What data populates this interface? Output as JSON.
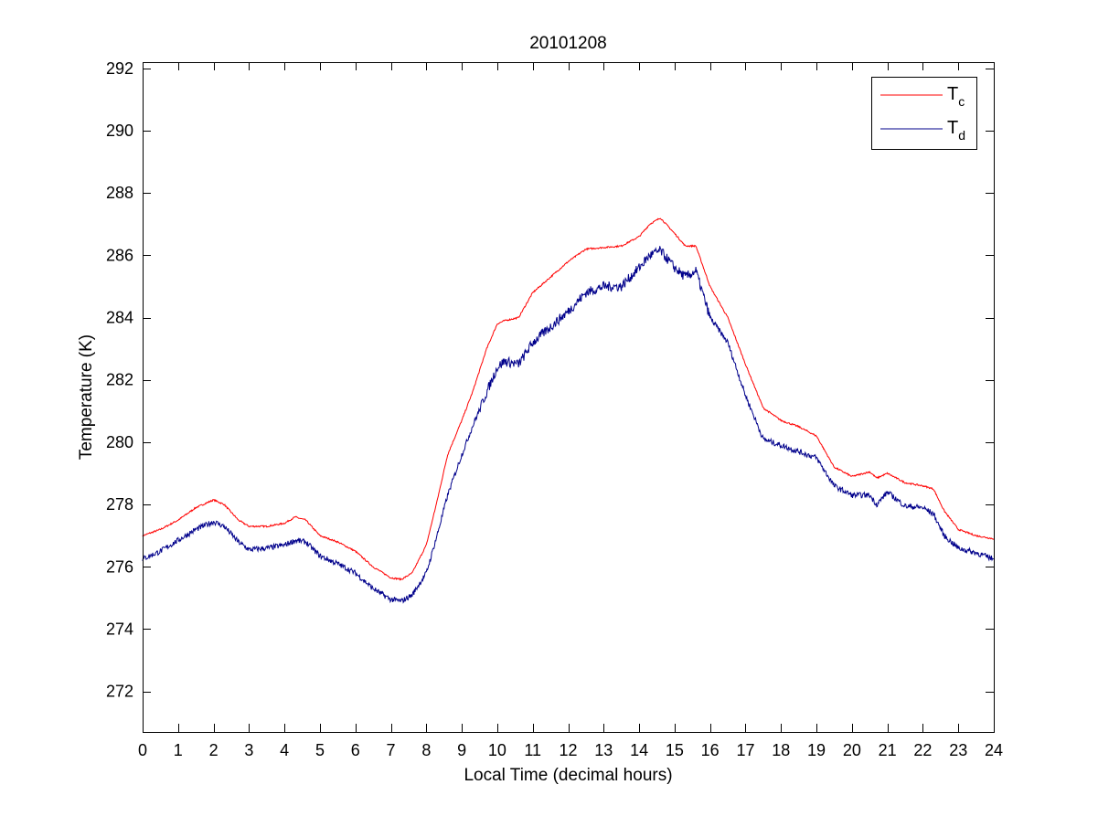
{
  "chart_data": {
    "type": "line",
    "title": "20101208",
    "xlabel": "Local Time (decimal hours)",
    "ylabel": "Temperature (K)",
    "xlim": [
      0,
      24
    ],
    "ylim": [
      270.7,
      292.2
    ],
    "xticks": [
      0,
      1,
      2,
      3,
      4,
      5,
      6,
      7,
      8,
      9,
      10,
      11,
      12,
      13,
      14,
      15,
      16,
      17,
      18,
      19,
      20,
      21,
      22,
      23,
      24
    ],
    "yticks": [
      272,
      274,
      276,
      278,
      280,
      282,
      284,
      286,
      288,
      290,
      292
    ],
    "grid": false,
    "legend_position": "top-right",
    "series": [
      {
        "name": "T",
        "name_subscript": "c",
        "color": "#ff0000",
        "x": [
          0,
          0.5,
          1,
          1.5,
          2,
          2.3,
          2.7,
          3,
          3.5,
          4,
          4.3,
          4.6,
          5,
          5.5,
          6,
          6.5,
          7,
          7.3,
          7.6,
          8,
          8.3,
          8.6,
          9,
          9.3,
          9.7,
          10,
          10.2,
          10.6,
          11,
          11.5,
          12,
          12.5,
          13,
          13.5,
          14,
          14.3,
          14.6,
          15,
          15.3,
          15.6,
          16,
          16.5,
          17,
          17.5,
          18,
          18.5,
          19,
          19.5,
          20,
          20.5,
          20.7,
          21,
          21.5,
          22,
          22.3,
          22.6,
          23,
          23.5,
          24
        ],
        "y": [
          277.0,
          277.2,
          277.5,
          277.9,
          278.15,
          278.0,
          277.5,
          277.3,
          277.3,
          277.4,
          277.6,
          277.5,
          277.0,
          276.8,
          276.5,
          276.0,
          275.65,
          275.6,
          275.8,
          276.7,
          278.1,
          279.6,
          280.7,
          281.6,
          283.0,
          283.8,
          283.9,
          284.0,
          284.8,
          285.3,
          285.8,
          286.2,
          286.25,
          286.3,
          286.6,
          287.0,
          287.2,
          286.7,
          286.3,
          286.3,
          285.0,
          284.0,
          282.5,
          281.1,
          280.7,
          280.5,
          280.2,
          279.2,
          278.9,
          279.05,
          278.85,
          279.0,
          278.7,
          278.6,
          278.5,
          277.8,
          277.2,
          277.0,
          276.9
        ]
      },
      {
        "name": "T",
        "name_subscript": "d",
        "color": "#00008b",
        "x": [
          0,
          0.5,
          1,
          1.5,
          2,
          2.3,
          2.7,
          3,
          3.5,
          4,
          4.3,
          4.6,
          5,
          5.5,
          6,
          6.5,
          7,
          7.3,
          7.6,
          8,
          8.3,
          8.6,
          9,
          9.3,
          9.7,
          10,
          10.2,
          10.6,
          11,
          11.5,
          12,
          12.5,
          13,
          13.5,
          14,
          14.3,
          14.6,
          15,
          15.3,
          15.6,
          16,
          16.5,
          17,
          17.5,
          18,
          18.5,
          19,
          19.5,
          20,
          20.5,
          20.7,
          21,
          21.5,
          22,
          22.3,
          22.6,
          23,
          23.5,
          24
        ],
        "y": [
          276.25,
          276.5,
          276.85,
          277.2,
          277.45,
          277.3,
          276.8,
          276.55,
          276.6,
          276.7,
          276.85,
          276.8,
          276.35,
          276.1,
          275.8,
          275.3,
          274.95,
          274.9,
          275.1,
          275.8,
          277.0,
          278.3,
          279.6,
          280.5,
          281.6,
          282.4,
          282.6,
          282.5,
          283.2,
          283.7,
          284.2,
          284.8,
          285.0,
          285.0,
          285.6,
          286.0,
          286.15,
          285.6,
          285.3,
          285.5,
          284.0,
          283.2,
          281.5,
          280.1,
          279.9,
          279.7,
          279.5,
          278.6,
          278.3,
          278.3,
          278.0,
          278.4,
          277.95,
          277.9,
          277.7,
          277.0,
          276.6,
          276.45,
          276.25
        ]
      }
    ]
  }
}
